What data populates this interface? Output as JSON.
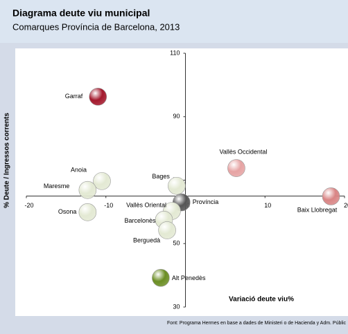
{
  "chart_data": {
    "type": "scatter",
    "title": "Diagrama deute viu municipal",
    "subtitle": "Comarques Província de Barcelona, 2013",
    "xlabel": "Variació deute viu%",
    "ylabel": "% Deute / Ingressos corrents",
    "source": "Font: Programa Hermes en base a dades de Ministeri o de Hacienda y Adm. Públic",
    "xlim": [
      -20,
      20
    ],
    "xticks": [
      -20,
      -10,
      0,
      10,
      20
    ],
    "ylim": [
      30,
      110
    ],
    "yticks": [
      30,
      50,
      70,
      90,
      110
    ],
    "grid": false,
    "points": [
      {
        "name": "Garraf",
        "x": -11,
        "y": 96.3,
        "color": "#a3182c"
      },
      {
        "name": "Vallès Occidental",
        "x": 6.4,
        "y": 73.8,
        "color": "#e6a3a3"
      },
      {
        "name": "Baix Llobregat",
        "x": 18.3,
        "y": 64.9,
        "color": "#d98585"
      },
      {
        "name": "Anoia",
        "x": -10.5,
        "y": 69.7,
        "color": "#e3e9d3"
      },
      {
        "name": "Maresme",
        "x": -12.3,
        "y": 66.9,
        "color": "#e3e9d3"
      },
      {
        "name": "Osona",
        "x": -12.3,
        "y": 59.9,
        "color": "#e3e9d3"
      },
      {
        "name": "Bages",
        "x": -1.1,
        "y": 68.2,
        "color": "#e3e9d3"
      },
      {
        "name": "Província",
        "x": -0.5,
        "y": 63,
        "color": "#555555"
      },
      {
        "name": "Vallès Oriental",
        "x": -1.7,
        "y": 60.3,
        "color": "#e3e9d3"
      },
      {
        "name": "Barcelonès",
        "x": -2.7,
        "y": 57.5,
        "color": "#e3e9d3"
      },
      {
        "name": "Berguedà",
        "x": -2.3,
        "y": 54.2,
        "color": "#e3e9d3"
      },
      {
        "name": "Alt Penedès",
        "x": -3.1,
        "y": 39.2,
        "color": "#6b8e23"
      }
    ]
  }
}
